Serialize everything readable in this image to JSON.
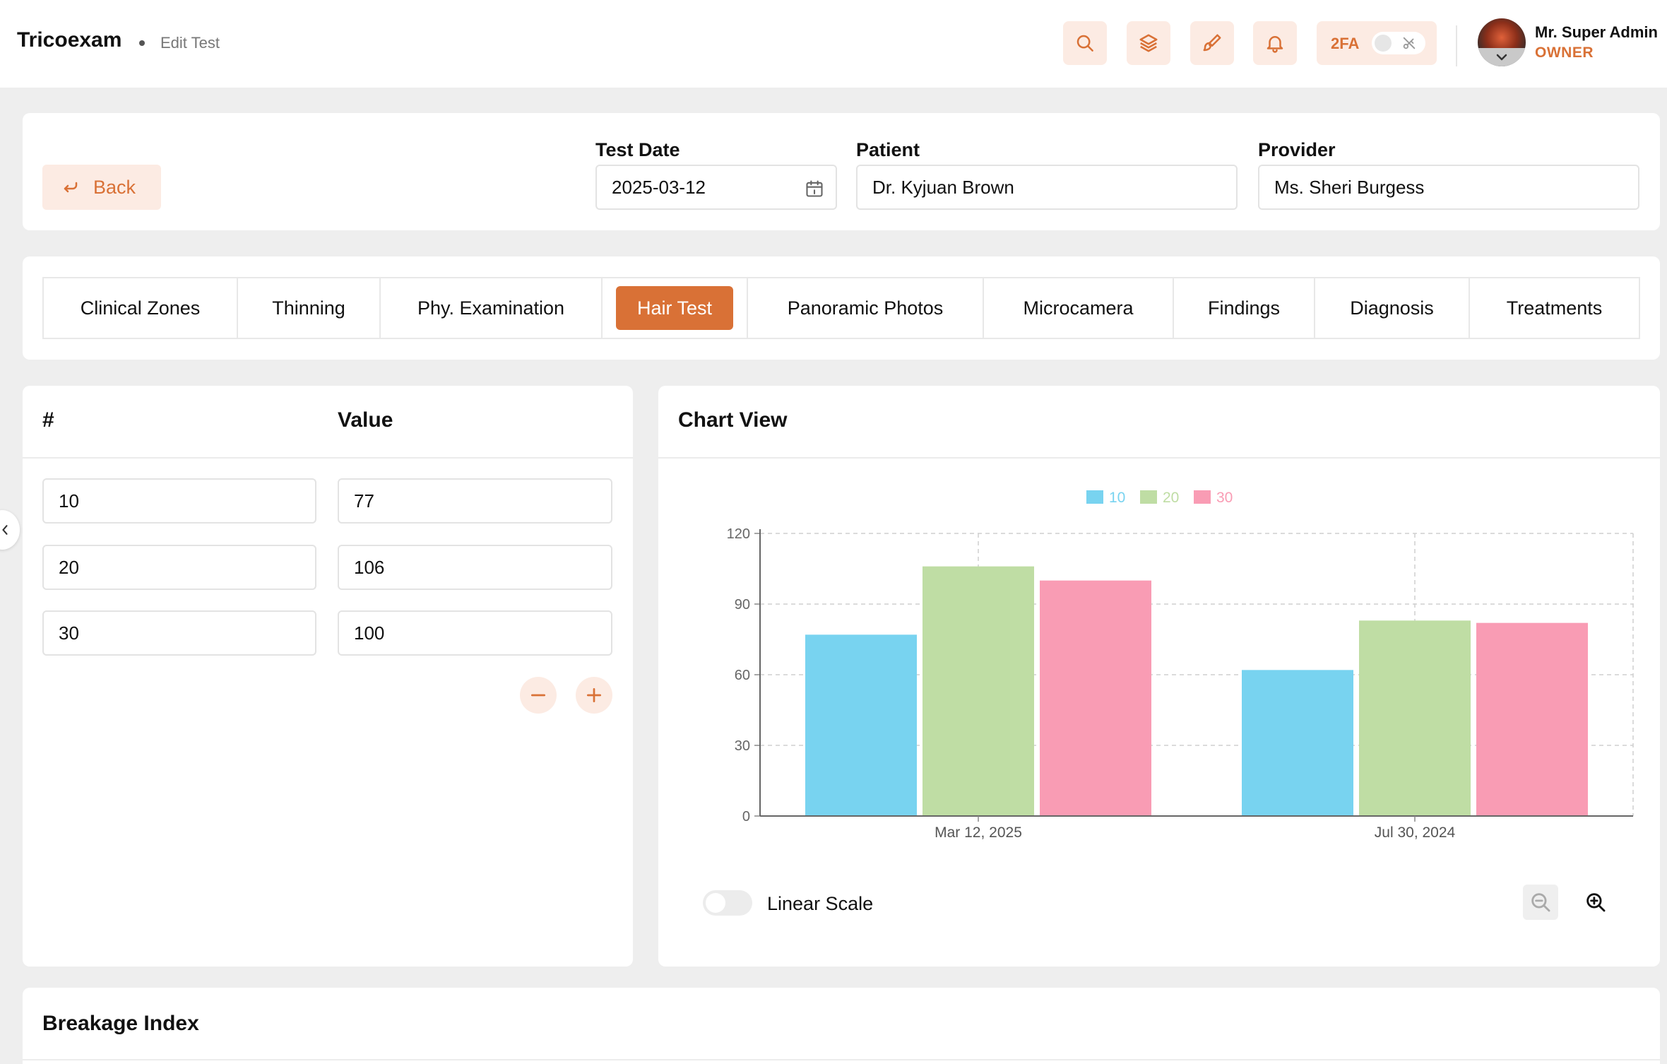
{
  "header": {
    "brand": "Tricoexam",
    "breadcrumb": "Edit Test",
    "twofa_label": "2FA",
    "user_name": "Mr. Super Admin",
    "user_role": "OWNER"
  },
  "form": {
    "back_label": "Back",
    "test_date_label": "Test Date",
    "test_date_value": "2025-03-12",
    "patient_label": "Patient",
    "patient_value": "Dr. Kyjuan Brown",
    "provider_label": "Provider",
    "provider_value": "Ms. Sheri Burgess"
  },
  "tabs": [
    {
      "label": "Clinical Zones"
    },
    {
      "label": "Thinning"
    },
    {
      "label": "Phy. Examination"
    },
    {
      "label": "Hair Test",
      "active": true
    },
    {
      "label": "Panoramic Photos"
    },
    {
      "label": "Microcamera"
    },
    {
      "label": "Findings"
    },
    {
      "label": "Diagnosis"
    },
    {
      "label": "Treatments"
    }
  ],
  "table": {
    "col_index": "#",
    "col_value": "Value",
    "rows": [
      {
        "index": "10",
        "value": "77"
      },
      {
        "index": "20",
        "value": "106"
      },
      {
        "index": "30",
        "value": "100"
      }
    ]
  },
  "chart_panel": {
    "title": "Chart View",
    "linear_scale_label": "Linear Scale",
    "linear_scale_on": false
  },
  "chart_data": {
    "type": "bar",
    "categories": [
      "Mar 12, 2025",
      "Jul 30, 2024"
    ],
    "series": [
      {
        "name": "10",
        "color": "#78d3f0",
        "values": [
          77,
          62
        ]
      },
      {
        "name": "20",
        "color": "#bfdda4",
        "values": [
          106,
          83
        ]
      },
      {
        "name": "30",
        "color": "#f99cb4",
        "values": [
          100,
          82
        ]
      }
    ],
    "yticks": [
      0,
      30,
      60,
      90,
      120
    ],
    "ylim": [
      0,
      120
    ],
    "grid": true,
    "legend_position": "top"
  },
  "breakage": {
    "title": "Breakage Index"
  },
  "colors": {
    "accent": "#d97136",
    "accent_light": "#fcebe3",
    "background": "#eeeeee"
  }
}
